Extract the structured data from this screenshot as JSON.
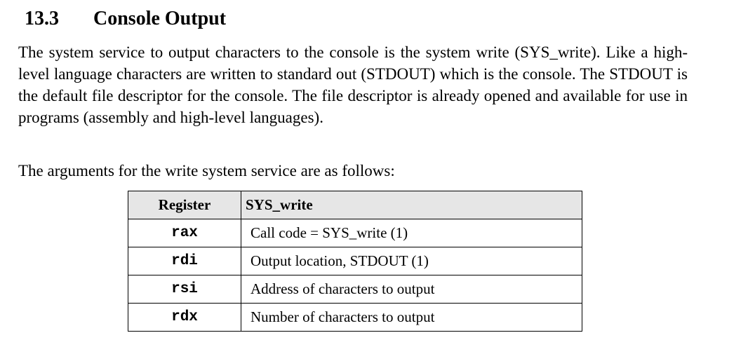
{
  "section": {
    "number": "13.3",
    "title": "Console Output"
  },
  "paragraphs": [
    "The system service to output characters to the console is the system write (SYS_write). Like a high-level language characters are written to standard out (STDOUT) which is the console.  The STDOUT is the default file descriptor for the console.  The file descriptor is already opened and available for use in programs (assembly and high-level languages).",
    "The arguments for the write system service are as follows:"
  ],
  "table": {
    "headers": [
      "Register",
      "SYS_write"
    ],
    "rows": [
      {
        "register": "rax",
        "description": "Call code = SYS_write (1)"
      },
      {
        "register": "rdi",
        "description": "Output location, STDOUT (1)"
      },
      {
        "register": "rsi",
        "description": "Address of characters to output"
      },
      {
        "register": "rdx",
        "description": "Number of characters to output"
      }
    ]
  }
}
